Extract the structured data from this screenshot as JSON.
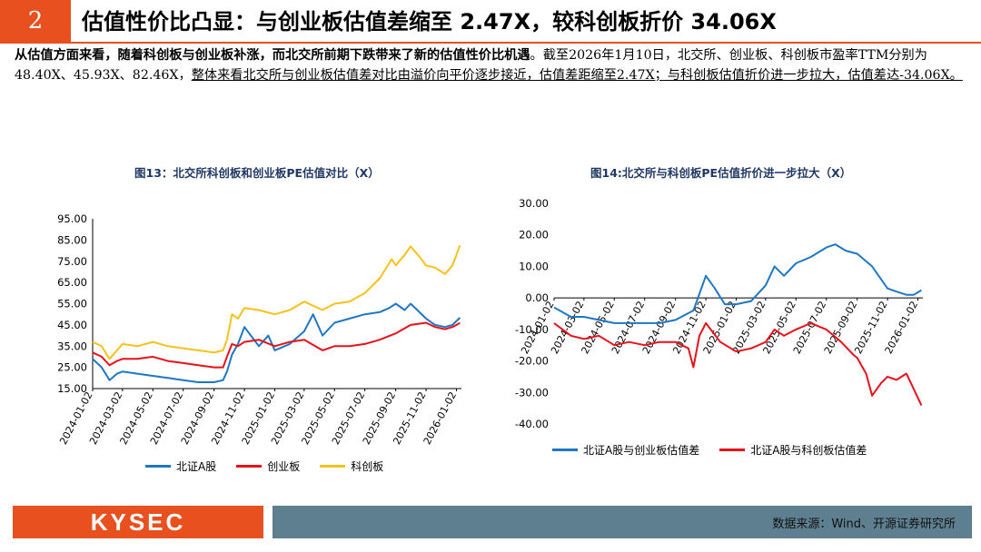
{
  "header": {
    "section_number": "2",
    "title": "估值性价比凸显：与创业板估值差缩至 2.47X，较科创板折价 34.06X"
  },
  "paragraph": {
    "bold_part": "从估值方面来看，随着科创板与创业板补涨，而北交所前期下跌带来了新的估值性价比机遇",
    "plain_part": "。截至2026年1月10日，北交所、创业板、科创板市盈率TTM分别为48.40X、45.93X、82.46X，",
    "underline_part": "整体来看北交所与创业板估值差对比由溢价向平价逐步接近，估值差距缩至2.47X；与科创板估值折价进一步拉大，估值差达-34.06X。"
  },
  "colors": {
    "blue": "#1f77c4",
    "red": "#e8111a",
    "gold": "#f5c21b",
    "accent": "#e8501f"
  },
  "chart_data": [
    {
      "type": "line",
      "title": "图13：北交所科创板和创业板PE估值对比（X）",
      "ylim": [
        15,
        95
      ],
      "yticks": [
        "95.00",
        "85.00",
        "75.00",
        "65.00",
        "55.00",
        "45.00",
        "35.00",
        "25.00",
        "15.00"
      ],
      "x_ticks": [
        "2024-01-02",
        "2024-03-02",
        "2024-05-02",
        "2024-07-02",
        "2024-09-02",
        "2024-11-02",
        "2025-01-02",
        "2025-03-02",
        "2025-05-02",
        "2025-07-02",
        "2025-09-02",
        "2025-11-02",
        "2026-01-02"
      ],
      "series": [
        {
          "name": "北证A股",
          "color": "#1f77c4",
          "values": [
            [
              "2024-01-02",
              29
            ],
            [
              "2024-01-20",
              25
            ],
            [
              "2024-02-05",
              19
            ],
            [
              "2024-02-20",
              22
            ],
            [
              "2024-03-02",
              23
            ],
            [
              "2024-04-01",
              22
            ],
            [
              "2024-05-02",
              21
            ],
            [
              "2024-06-01",
              20
            ],
            [
              "2024-07-02",
              19
            ],
            [
              "2024-08-01",
              18
            ],
            [
              "2024-09-02",
              18
            ],
            [
              "2024-09-20",
              19
            ],
            [
              "2024-09-28",
              23
            ],
            [
              "2024-10-08",
              31
            ],
            [
              "2024-10-20",
              36
            ],
            [
              "2024-11-02",
              44
            ],
            [
              "2024-11-15",
              40
            ],
            [
              "2024-12-01",
              35
            ],
            [
              "2024-12-20",
              40
            ],
            [
              "2025-01-02",
              33
            ],
            [
              "2025-02-01",
              36
            ],
            [
              "2025-03-02",
              42
            ],
            [
              "2025-03-20",
              50
            ],
            [
              "2025-04-08",
              40
            ],
            [
              "2025-05-02",
              46
            ],
            [
              "2025-06-01",
              48
            ],
            [
              "2025-07-02",
              50
            ],
            [
              "2025-08-01",
              51
            ],
            [
              "2025-08-20",
              53
            ],
            [
              "2025-09-02",
              55
            ],
            [
              "2025-09-20",
              52
            ],
            [
              "2025-10-02",
              55
            ],
            [
              "2025-11-02",
              48
            ],
            [
              "2025-11-20",
              45
            ],
            [
              "2025-12-10",
              44
            ],
            [
              "2025-12-25",
              45
            ],
            [
              "2026-01-09",
              48.4
            ]
          ]
        },
        {
          "name": "创业板",
          "color": "#e8111a",
          "values": [
            [
              "2024-01-02",
              32
            ],
            [
              "2024-01-20",
              30
            ],
            [
              "2024-02-05",
              26
            ],
            [
              "2024-02-20",
              28
            ],
            [
              "2024-03-02",
              29
            ],
            [
              "2024-04-01",
              29
            ],
            [
              "2024-05-02",
              30
            ],
            [
              "2024-06-01",
              28
            ],
            [
              "2024-07-02",
              27
            ],
            [
              "2024-08-01",
              26
            ],
            [
              "2024-09-02",
              25
            ],
            [
              "2024-09-20",
              25
            ],
            [
              "2024-09-28",
              30
            ],
            [
              "2024-10-08",
              36
            ],
            [
              "2024-10-20",
              35
            ],
            [
              "2024-11-02",
              37
            ],
            [
              "2024-12-01",
              38
            ],
            [
              "2025-01-02",
              35
            ],
            [
              "2025-02-01",
              37
            ],
            [
              "2025-03-02",
              38
            ],
            [
              "2025-04-08",
              33
            ],
            [
              "2025-05-02",
              35
            ],
            [
              "2025-06-01",
              35
            ],
            [
              "2025-07-02",
              36
            ],
            [
              "2025-08-01",
              38
            ],
            [
              "2025-09-02",
              41
            ],
            [
              "2025-10-02",
              45
            ],
            [
              "2025-11-02",
              46
            ],
            [
              "2025-11-20",
              44
            ],
            [
              "2025-12-10",
              43
            ],
            [
              "2025-12-25",
              44
            ],
            [
              "2026-01-09",
              45.93
            ]
          ]
        },
        {
          "name": "科创板",
          "color": "#f5c21b",
          "values": [
            [
              "2024-01-02",
              37
            ],
            [
              "2024-01-20",
              35
            ],
            [
              "2024-02-05",
              29
            ],
            [
              "2024-02-20",
              33
            ],
            [
              "2024-03-02",
              36
            ],
            [
              "2024-04-01",
              35
            ],
            [
              "2024-05-02",
              37
            ],
            [
              "2024-06-01",
              35
            ],
            [
              "2024-07-02",
              34
            ],
            [
              "2024-08-01",
              33
            ],
            [
              "2024-09-02",
              32
            ],
            [
              "2024-09-20",
              33
            ],
            [
              "2024-09-28",
              38
            ],
            [
              "2024-10-08",
              50
            ],
            [
              "2024-10-20",
              48
            ],
            [
              "2024-11-02",
              53
            ],
            [
              "2024-12-01",
              52
            ],
            [
              "2025-01-02",
              50
            ],
            [
              "2025-02-01",
              52
            ],
            [
              "2025-03-02",
              56
            ],
            [
              "2025-04-08",
              52
            ],
            [
              "2025-05-02",
              55
            ],
            [
              "2025-06-01",
              56
            ],
            [
              "2025-07-02",
              60
            ],
            [
              "2025-08-01",
              67
            ],
            [
              "2025-08-25",
              76
            ],
            [
              "2025-09-02",
              73
            ],
            [
              "2025-09-20",
              78
            ],
            [
              "2025-10-02",
              82
            ],
            [
              "2025-10-20",
              77
            ],
            [
              "2025-11-02",
              73
            ],
            [
              "2025-11-20",
              72
            ],
            [
              "2025-12-10",
              69
            ],
            [
              "2025-12-25",
              73
            ],
            [
              "2026-01-09",
              82.46
            ]
          ]
        }
      ]
    },
    {
      "type": "line",
      "title": "图14:北交所与科创板PE估值折价进一步拉大（X）",
      "ylim": [
        -40,
        30
      ],
      "yticks": [
        "30.00",
        "20.00",
        "10.00",
        "0.00",
        "-10.00",
        "-20.00",
        "-30.00",
        "-40.00"
      ],
      "x_ticks": [
        "2024-01-02",
        "2024-03-02",
        "2024-05-02",
        "2024-07-02",
        "2024-09-02",
        "2024-11-02",
        "2025-01-02",
        "2025-03-02",
        "2025-05-02",
        "2025-07-02",
        "2025-09-02",
        "2025-11-02",
        "2026-01-02"
      ],
      "series": [
        {
          "name": "北证A股与创业板估值差",
          "color": "#1f77c4",
          "values": [
            [
              "2024-01-02",
              -3
            ],
            [
              "2024-02-05",
              -6
            ],
            [
              "2024-03-02",
              -6
            ],
            [
              "2024-04-01",
              -7
            ],
            [
              "2024-05-02",
              -8
            ],
            [
              "2024-06-01",
              -8
            ],
            [
              "2024-07-02",
              -8
            ],
            [
              "2024-08-01",
              -8
            ],
            [
              "2024-09-02",
              -7
            ],
            [
              "2024-10-08",
              -4
            ],
            [
              "2024-11-02",
              7
            ],
            [
              "2024-11-20",
              3
            ],
            [
              "2024-12-10",
              -2
            ],
            [
              "2025-01-02",
              -2
            ],
            [
              "2025-02-01",
              -1
            ],
            [
              "2025-03-02",
              4
            ],
            [
              "2025-03-20",
              10
            ],
            [
              "2025-04-08",
              7
            ],
            [
              "2025-05-02",
              11
            ],
            [
              "2025-06-01",
              13
            ],
            [
              "2025-07-02",
              16
            ],
            [
              "2025-07-20",
              17
            ],
            [
              "2025-08-10",
              15
            ],
            [
              "2025-09-02",
              14
            ],
            [
              "2025-10-02",
              10
            ],
            [
              "2025-11-02",
              3
            ],
            [
              "2025-11-20",
              2
            ],
            [
              "2025-12-10",
              1
            ],
            [
              "2025-12-25",
              1
            ],
            [
              "2026-01-09",
              2.47
            ]
          ]
        },
        {
          "name": "北证A股与科创板估值差",
          "color": "#e8111a",
          "values": [
            [
              "2024-01-02",
              -8
            ],
            [
              "2024-02-05",
              -12
            ],
            [
              "2024-03-02",
              -13
            ],
            [
              "2024-04-01",
              -12
            ],
            [
              "2024-05-02",
              -15
            ],
            [
              "2024-06-01",
              -14
            ],
            [
              "2024-07-02",
              -15
            ],
            [
              "2024-08-01",
              -14
            ],
            [
              "2024-09-02",
              -14
            ],
            [
              "2024-09-28",
              -16
            ],
            [
              "2024-10-08",
              -22
            ],
            [
              "2024-10-20",
              -12
            ],
            [
              "2024-11-02",
              -8
            ],
            [
              "2024-12-01",
              -14
            ],
            [
              "2025-01-02",
              -17
            ],
            [
              "2025-02-01",
              -16
            ],
            [
              "2025-03-02",
              -14
            ],
            [
              "2025-03-20",
              -10
            ],
            [
              "2025-04-08",
              -12
            ],
            [
              "2025-05-02",
              -10
            ],
            [
              "2025-06-01",
              -8
            ],
            [
              "2025-07-02",
              -10
            ],
            [
              "2025-08-01",
              -14
            ],
            [
              "2025-08-25",
              -18
            ],
            [
              "2025-09-02",
              -19
            ],
            [
              "2025-09-20",
              -24
            ],
            [
              "2025-10-02",
              -31
            ],
            [
              "2025-10-20",
              -27
            ],
            [
              "2025-11-02",
              -25
            ],
            [
              "2025-11-20",
              -26
            ],
            [
              "2025-12-10",
              -24
            ],
            [
              "2025-12-25",
              -29
            ],
            [
              "2026-01-09",
              -34.06
            ]
          ]
        }
      ]
    }
  ],
  "footer": {
    "logo": "KYSEC",
    "source": "数据来源：Wind、开源证券研究所"
  }
}
